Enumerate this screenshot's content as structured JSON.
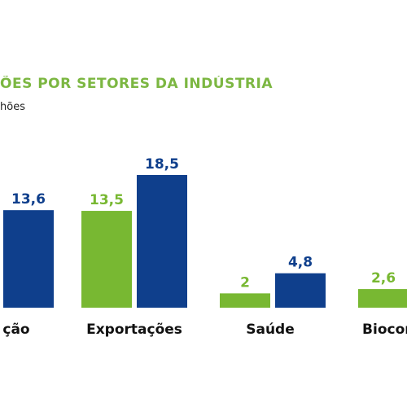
{
  "colors": {
    "series_a": "#78b832",
    "series_b": "#0f3f8c",
    "title": "#7cb742"
  },
  "chart_data": {
    "type": "bar",
    "title": "ÕES POR SETORES DA INDÚSTRIA",
    "subtitle": "hões",
    "categories": [
      "ção",
      "Exportações",
      "Saúde",
      "Biocom"
    ],
    "series": [
      {
        "values": [
          null,
          13.5,
          2,
          2.6
        ],
        "labels": [
          "",
          "13,5",
          "2",
          "2,6"
        ]
      },
      {
        "values": [
          13.6,
          18.5,
          4.8,
          null
        ],
        "labels": [
          "13,6",
          "18,5",
          "4,8",
          ""
        ]
      }
    ],
    "ylim": [
      0,
      18.5
    ],
    "grid": false,
    "legend": "none"
  }
}
